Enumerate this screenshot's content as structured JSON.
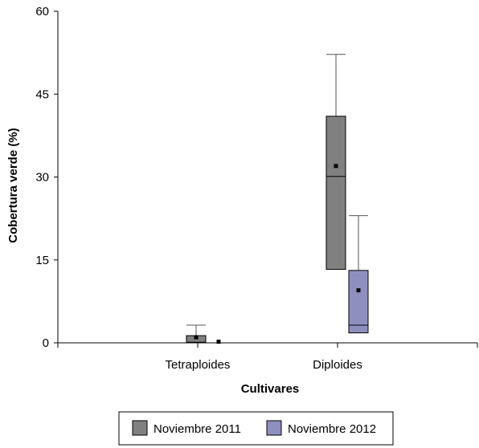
{
  "chart_data": {
    "type": "boxplot",
    "title": "",
    "xlabel": "Cultivares",
    "ylabel": "Cobertura verde (%)",
    "ylim": [
      0,
      60
    ],
    "yticks": [
      0,
      15,
      30,
      45,
      60
    ],
    "categories": [
      "Tetraploides",
      "Diploides"
    ],
    "legend_position": "bottom",
    "grid": false,
    "series": [
      {
        "name": "Noviembre 2011",
        "color": "#808080",
        "boxes": [
          {
            "min": 0,
            "q1": 0,
            "median": 0.1,
            "q3": 1.3,
            "max": 3.2,
            "mean": 1.0
          },
          {
            "min": 13.3,
            "q1": 13.3,
            "median": 30.1,
            "q3": 41.0,
            "max": 52.2,
            "mean": 32.0
          }
        ]
      },
      {
        "name": "Noviembre 2012",
        "color": "#8f8fbf",
        "boxes": [
          {
            "min": 0,
            "q1": 0,
            "median": 0,
            "q3": 0,
            "max": 0,
            "mean": 0.2
          },
          {
            "min": 1.8,
            "q1": 1.8,
            "median": 3.2,
            "q3": 13.1,
            "max": 23.0,
            "mean": 9.5
          }
        ]
      }
    ]
  }
}
